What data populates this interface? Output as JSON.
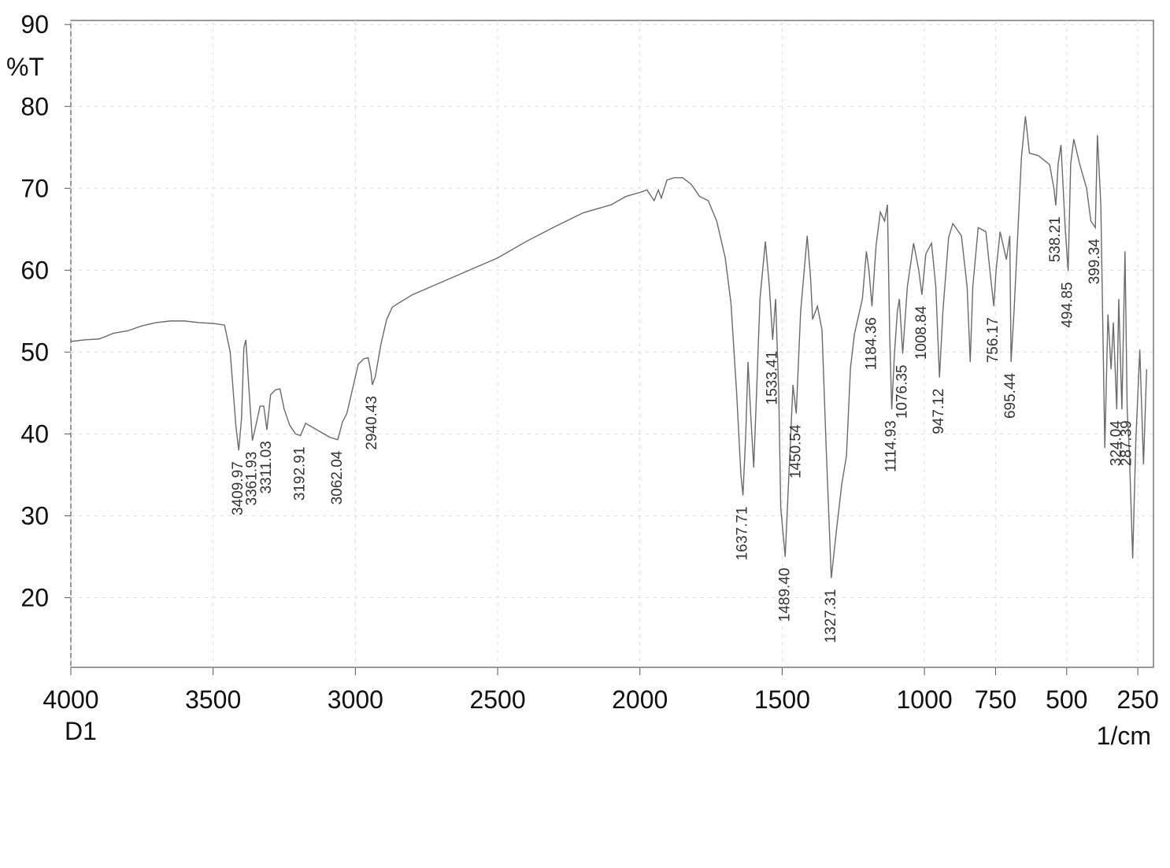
{
  "chart_data": {
    "type": "line",
    "y_label": "%T",
    "x_label": "1/cm",
    "sample_label": "D1",
    "xlim": [
      4000,
      195
    ],
    "ylim": [
      11.5,
      90.5
    ],
    "xticks": [
      4000,
      3500,
      3000,
      2500,
      2000,
      1500,
      1000,
      750,
      500,
      250
    ],
    "yticks": [
      20,
      30,
      40,
      50,
      60,
      70,
      80,
      90
    ],
    "grid": true,
    "x": [
      4000,
      3950,
      3900,
      3850,
      3800,
      3750,
      3700,
      3650,
      3600,
      3550,
      3500,
      3460,
      3440,
      3420,
      3409.97,
      3400,
      3392,
      3385,
      3375,
      3361.93,
      3350,
      3335,
      3322,
      3311.03,
      3298,
      3280,
      3265,
      3250,
      3230,
      3210,
      3192.91,
      3175,
      3150,
      3120,
      3090,
      3062.04,
      3045,
      3030,
      3010,
      2990,
      2970,
      2955,
      2945,
      2940.43,
      2930,
      2910,
      2890,
      2870,
      2800,
      2700,
      2600,
      2500,
      2400,
      2300,
      2200,
      2100,
      2050,
      2000,
      1975,
      1960,
      1950,
      1935,
      1925,
      1905,
      1880,
      1850,
      1820,
      1790,
      1760,
      1730,
      1700,
      1680,
      1660,
      1645,
      1637.71,
      1628,
      1620,
      1610,
      1600,
      1590,
      1578,
      1559,
      1545,
      1533.41,
      1523,
      1512,
      1505,
      1489.4,
      1475,
      1462,
      1450.54,
      1435,
      1412,
      1400,
      1393,
      1376,
      1360,
      1345,
      1327.31,
      1310,
      1290,
      1274,
      1260,
      1246,
      1218,
      1204,
      1195,
      1184.36,
      1170,
      1155,
      1140,
      1130,
      1122,
      1114.93,
      1105,
      1095,
      1088,
      1076.35,
      1060,
      1038,
      1020,
      1008.84,
      995,
      975,
      960,
      947.12,
      935,
      915,
      900,
      870,
      850,
      839,
      830,
      811,
      784,
      770,
      756.17,
      748,
      734,
      712,
      700,
      695.44,
      685,
      659,
      645,
      631,
      600,
      560,
      545,
      538.21,
      530,
      520,
      505,
      494.85,
      486,
      475,
      454,
      430,
      415,
      399.34,
      392,
      380,
      366,
      355,
      344,
      336,
      324.04,
      317,
      306,
      295,
      287.39,
      280,
      268,
      257,
      243,
      230,
      219
    ],
    "series": [
      {
        "color": "#6a6a6a",
        "values": [
          51.3,
          51.5,
          51.6,
          52.3,
          52.6,
          53.2,
          53.6,
          53.8,
          53.8,
          53.6,
          53.5,
          53.3,
          50,
          41,
          38,
          42,
          50.5,
          51.5,
          46,
          39.2,
          41,
          43.4,
          43.4,
          40.5,
          44.8,
          45.4,
          45.5,
          43,
          41,
          40,
          39.8,
          41.3,
          40.8,
          40.2,
          39.6,
          39.3,
          41.5,
          42.5,
          45.5,
          48.5,
          49.2,
          49.3,
          47.5,
          46,
          47,
          51,
          54,
          55.5,
          57,
          58.5,
          60,
          61.5,
          63.5,
          65.3,
          67,
          68,
          69,
          69.5,
          69.8,
          69,
          68.5,
          69.8,
          68.8,
          71,
          71.3,
          71.3,
          70.5,
          69,
          68.5,
          66,
          61.5,
          56,
          45,
          35,
          32.5,
          40,
          48.8,
          42,
          35.9,
          45,
          56.5,
          63.5,
          58,
          51.5,
          56.5,
          45,
          31,
          25,
          36,
          46,
          42.5,
          55,
          64.2,
          59,
          54,
          55.6,
          52.7,
          38,
          22.4,
          28,
          34,
          37.3,
          48,
          52.2,
          56.5,
          62.3,
          60,
          55.6,
          63,
          67.1,
          66,
          68,
          52,
          43,
          50,
          55,
          56.5,
          49.8,
          58,
          63.3,
          60,
          57,
          62,
          63.3,
          58,
          46.9,
          55,
          64,
          65.7,
          64.2,
          58,
          48.8,
          58,
          65.2,
          64.7,
          60,
          55.6,
          60,
          64.7,
          61.3,
          64.2,
          48.8,
          55,
          73.8,
          78.8,
          74.3,
          74,
          72.9,
          70,
          67.9,
          73,
          75.3,
          65,
          59.9,
          73,
          76,
          72.9,
          70,
          66,
          65.2,
          76.5,
          68,
          38.3,
          54.6,
          47.9,
          53.6,
          43,
          56.5,
          43,
          62.3,
          43,
          38,
          24.8,
          39.2,
          50.3,
          36.3,
          47.9
        ]
      }
    ],
    "annotations": [
      {
        "x": 3409.97,
        "label": "3409.97"
      },
      {
        "x": 3361.93,
        "label": "3361.93"
      },
      {
        "x": 3311.03,
        "label": "3311.03"
      },
      {
        "x": 3192.91,
        "label": "3192.91"
      },
      {
        "x": 3062.04,
        "label": "3062.04"
      },
      {
        "x": 2940.43,
        "label": "2940.43"
      },
      {
        "x": 1637.71,
        "label": "1637.71"
      },
      {
        "x": 1533.41,
        "label": "1533.41"
      },
      {
        "x": 1489.4,
        "label": "1489.40"
      },
      {
        "x": 1450.54,
        "label": "1450.54"
      },
      {
        "x": 1327.31,
        "label": "1327.31"
      },
      {
        "x": 1184.36,
        "label": "1184.36"
      },
      {
        "x": 1114.93,
        "label": "1114.93"
      },
      {
        "x": 1076.35,
        "label": "1076.35"
      },
      {
        "x": 1008.84,
        "label": "1008.84"
      },
      {
        "x": 947.12,
        "label": "947.12"
      },
      {
        "x": 756.17,
        "label": "756.17"
      },
      {
        "x": 695.44,
        "label": "695.44"
      },
      {
        "x": 538.21,
        "label": "538.21"
      },
      {
        "x": 494.85,
        "label": "494.85"
      },
      {
        "x": 399.34,
        "label": "399.34"
      },
      {
        "x": 324.04,
        "label": "324.04"
      },
      {
        "x": 287.39,
        "label": "287.39"
      }
    ]
  }
}
